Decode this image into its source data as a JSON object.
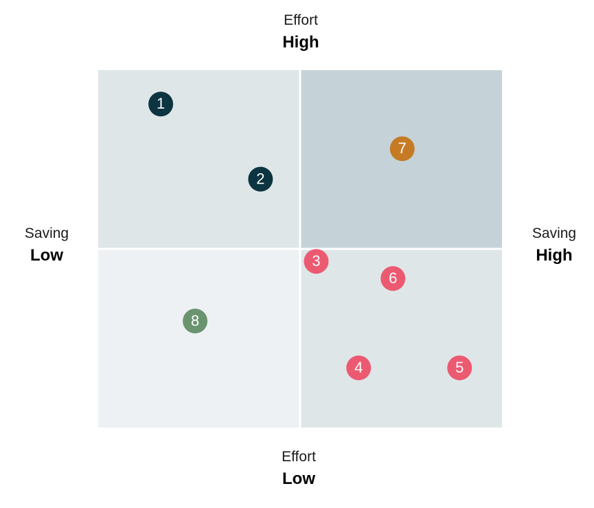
{
  "chart_data": {
    "type": "scatter",
    "quadrant_matrix": true,
    "x_axis": {
      "name": "Saving",
      "low_label": "Low",
      "high_label": "High",
      "range": [
        0,
        1
      ]
    },
    "y_axis": {
      "name": "Effort",
      "low_label": "Low",
      "high_label": "High",
      "range": [
        0,
        1
      ]
    },
    "quadrants": [
      {
        "position": "top-left",
        "color": "#dfe6e8"
      },
      {
        "position": "top-right",
        "color": "#c5d3d8"
      },
      {
        "position": "bottom-left",
        "color": "#edf1f3"
      },
      {
        "position": "bottom-right",
        "color": "#dfe6e8"
      }
    ],
    "points": [
      {
        "label": "1",
        "x": 0.155,
        "y": 0.905,
        "color": "#0c3441"
      },
      {
        "label": "2",
        "x": 0.402,
        "y": 0.695,
        "color": "#0c3441"
      },
      {
        "label": "3",
        "x": 0.54,
        "y": 0.465,
        "color": "#ec5a71"
      },
      {
        "label": "4",
        "x": 0.645,
        "y": 0.167,
        "color": "#ec5a71"
      },
      {
        "label": "5",
        "x": 0.895,
        "y": 0.167,
        "color": "#ec5a71"
      },
      {
        "label": "6",
        "x": 0.73,
        "y": 0.417,
        "color": "#ec5a71"
      },
      {
        "label": "7",
        "x": 0.753,
        "y": 0.78,
        "color": "#c57a24"
      },
      {
        "label": "8",
        "x": 0.24,
        "y": 0.298,
        "color": "#6a9470"
      }
    ],
    "divider_color": "#ffffff"
  }
}
